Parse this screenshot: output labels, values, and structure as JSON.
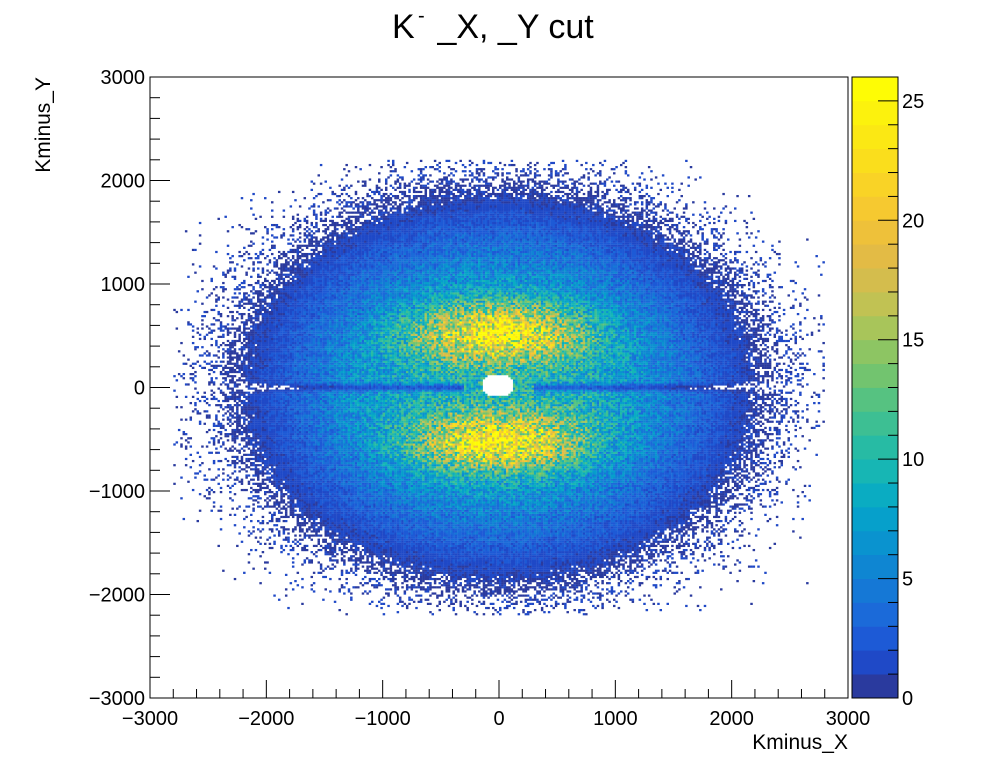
{
  "chart_data": {
    "type": "heatmap",
    "title": "K",
    "title_superscript": "-",
    "title_rest": " _X, _Y cut",
    "xlabel": "Kminus_X",
    "ylabel": "Kminus_Y",
    "xlim": [
      -3000,
      3000
    ],
    "ylim": [
      -3000,
      3000
    ],
    "x_ticks": [
      -3000,
      -2000,
      -1000,
      0,
      1000,
      2000,
      3000
    ],
    "x_tick_labels": [
      "−3000",
      "−2000",
      "−1000",
      "0",
      "1000",
      "2000",
      "3000"
    ],
    "y_ticks": [
      -3000,
      -2000,
      -1000,
      0,
      1000,
      2000,
      3000
    ],
    "y_tick_labels": [
      "−3000",
      "−2000",
      "−1000",
      "0",
      "1000",
      "2000",
      "3000"
    ],
    "bin_width": 20,
    "colorbar": {
      "zlim": [
        0,
        26
      ],
      "ticks": [
        0,
        5,
        10,
        15,
        20,
        25
      ],
      "tick_labels": [
        "0",
        "5",
        "10",
        "15",
        "20",
        "25"
      ],
      "palette": [
        "#2a3a9e",
        "#1f49c7",
        "#1d5ad6",
        "#1b6ad9",
        "#1578d6",
        "#0f86d2",
        "#0a93cf",
        "#06a0cb",
        "#0aacc2",
        "#17b6b4",
        "#27bba4",
        "#3dbf93",
        "#56c281",
        "#72c46f",
        "#8dc563",
        "#a8c55a",
        "#c1c253",
        "#d4bd4d",
        "#e3bb45",
        "#eec13a",
        "#f6c930",
        "#f9d326",
        "#fade1c",
        "#fbe814",
        "#fcf20d",
        "#fefc05"
      ]
    },
    "grid": false,
    "legend": "none",
    "distribution": {
      "x_range": [
        -2800,
        2800
      ],
      "y_range": [
        -2200,
        2200
      ],
      "hole_center": [
        -10,
        20
      ],
      "hole_radius": [
        140,
        110
      ],
      "lobes": [
        {
          "x": 0,
          "y": 520,
          "peak": 22
        },
        {
          "x": 0,
          "y": -520,
          "peak": 22
        }
      ],
      "horizontal_gap_y": 0
    }
  }
}
